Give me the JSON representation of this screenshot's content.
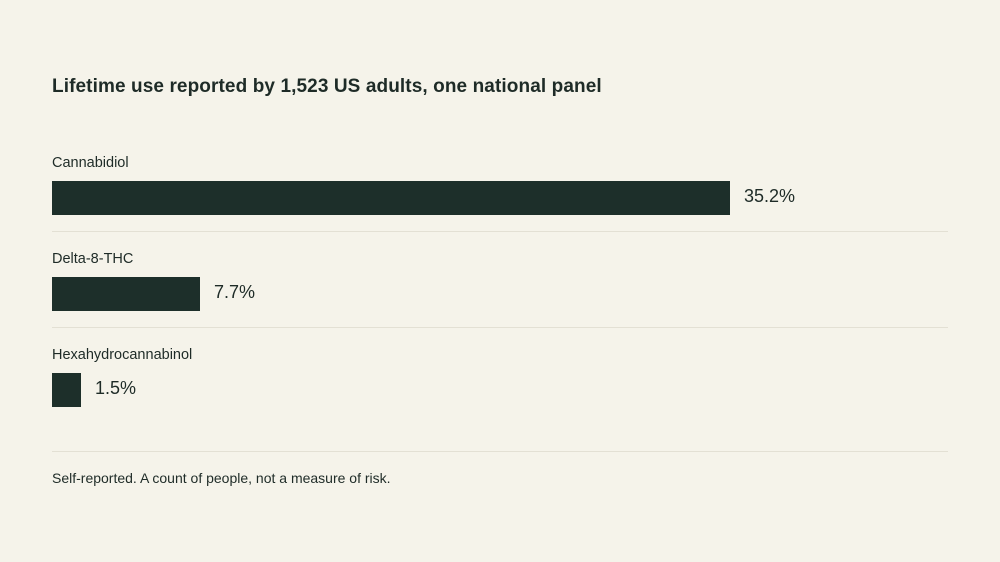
{
  "chart_data": {
    "type": "bar",
    "orientation": "horizontal",
    "title": "Lifetime use reported by 1,523 US adults, one national panel",
    "categories": [
      "Cannabidiol",
      "Delta-8-THC",
      "Hexahydrocannabinol"
    ],
    "values": [
      35.2,
      7.7,
      1.5
    ],
    "value_labels": [
      "35.2%",
      "7.7%",
      "1.5%"
    ],
    "xlim": [
      0,
      46.5
    ],
    "grid": false,
    "bar_color": "#1d2f2a",
    "note": "Self-reported. A count of people, not a measure of risk."
  }
}
